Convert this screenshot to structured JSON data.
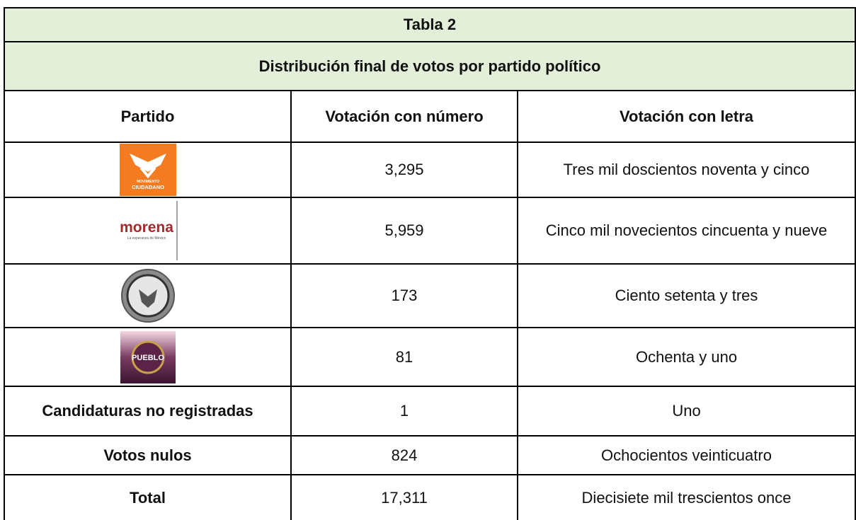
{
  "table": {
    "title": "Tabla 2",
    "subtitle": "Distribución final de votos por partido político",
    "header": [
      "Partido",
      "Votación con número",
      "Votación con letra"
    ],
    "rows": [
      {
        "partido": {
          "logo": [
            "MOVIMIENTO",
            "CIUDADANO"
          ]
        },
        "numero": "3,295",
        "letra": "Tres mil doscientos noventa y cinco"
      },
      {
        "partido": {
          "logo": [
            "morena",
            "La esperanza de México"
          ]
        },
        "numero": "5,959",
        "letra": "Cinco mil novecientos cincuenta y nueve"
      },
      {
        "partido": {
          "logo": []
        },
        "numero": "173",
        "letra": "Ciento setenta y tres"
      },
      {
        "partido": {
          "logo": [
            "PUEBLO"
          ]
        },
        "numero": "81",
        "letra": "Ochenta y uno"
      },
      {
        "partido": "Candidaturas no registradas",
        "numero": "1",
        "letra": "Uno"
      },
      {
        "partido": "Votos nulos",
        "numero": "824",
        "letra": "Ochocientos veinticuatro"
      },
      {
        "partido": "Total",
        "numero": "17,311",
        "letra": "Diecisiete mil trescientos once"
      }
    ]
  }
}
